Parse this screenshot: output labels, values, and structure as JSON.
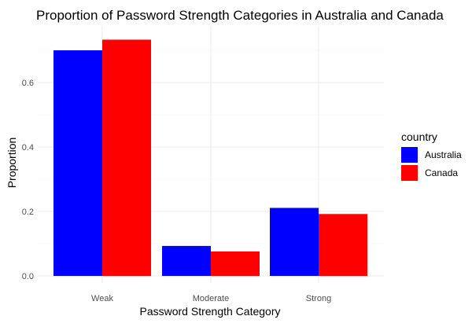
{
  "chart_data": {
    "type": "bar",
    "title": "Proportion of Password Strength Categories in Australia and Canada",
    "xlabel": "Password Strength Category",
    "ylabel": "Proportion",
    "categories": [
      "Weak",
      "Moderate",
      "Strong"
    ],
    "series": [
      {
        "name": "Australia",
        "color": "#0000ff",
        "values": [
          0.7,
          0.093,
          0.211
        ]
      },
      {
        "name": "Canada",
        "color": "#ff0000",
        "values": [
          0.733,
          0.076,
          0.192
        ]
      }
    ],
    "ylim": [
      0,
      0.74
    ],
    "yticks": [
      0.0,
      0.2,
      0.4,
      0.6
    ],
    "ytick_labels": [
      "0.0",
      "0.2",
      "0.4",
      "0.6"
    ],
    "legend": {
      "title": "country",
      "position": "right"
    },
    "grid": true
  }
}
